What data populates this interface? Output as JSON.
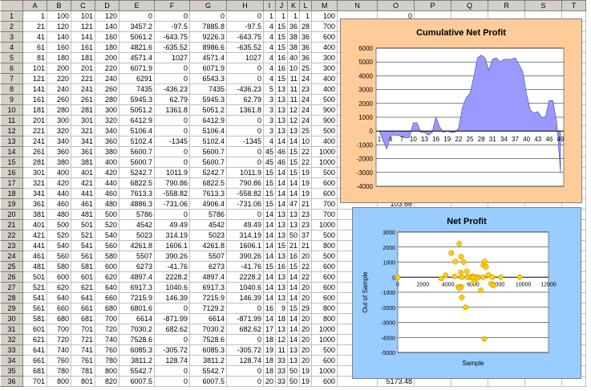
{
  "columns": [
    "A",
    "B",
    "C",
    "D",
    "E",
    "F",
    "G",
    "H",
    "I",
    "J",
    "K",
    "L",
    "M",
    "N",
    "O",
    "P",
    "Q",
    "R",
    "S",
    "T"
  ],
  "rows": [
    [
      "1",
      "100",
      "101",
      "120",
      "0",
      "0",
      "0",
      "0",
      "1",
      "1",
      "1",
      "1",
      "100"
    ],
    [
      "21",
      "120",
      "121",
      "140",
      "3457.2",
      "-97.5",
      "7885.8",
      "-97.5",
      "4",
      "15",
      "36",
      "28",
      "700"
    ],
    [
      "41",
      "140",
      "141",
      "160",
      "5061.2",
      "-643.75",
      "9226.3",
      "-643.75",
      "4",
      "15",
      "38",
      "36",
      "600"
    ],
    [
      "61",
      "160",
      "161",
      "180",
      "4821.6",
      "-635.52",
      "8986.6",
      "-635.52",
      "4",
      "15",
      "38",
      "36",
      "400"
    ],
    [
      "81",
      "180",
      "181",
      "200",
      "4571.4",
      "1027",
      "4571.4",
      "1027",
      "4",
      "16",
      "40",
      "36",
      "300"
    ],
    [
      "101",
      "200",
      "201",
      "220",
      "6071.9",
      "0",
      "6071.9",
      "0",
      "4",
      "16",
      "10",
      "25",
      "300"
    ],
    [
      "121",
      "220",
      "221",
      "240",
      "6291",
      "0",
      "6543.3",
      "0",
      "4",
      "15",
      "11",
      "24",
      "400"
    ],
    [
      "141",
      "240",
      "241",
      "260",
      "7435",
      "-436.23",
      "7435",
      "-436.23",
      "5",
      "13",
      "11",
      "23",
      "400"
    ],
    [
      "161",
      "260",
      "261",
      "280",
      "5945.3",
      "62.79",
      "5945.3",
      "62.79",
      "3",
      "13",
      "11",
      "24",
      "500"
    ],
    [
      "181",
      "280",
      "281",
      "300",
      "5051.2",
      "1361.8",
      "5051.2",
      "1361.8",
      "3",
      "13",
      "12",
      "24",
      "900"
    ],
    [
      "201",
      "300",
      "301",
      "320",
      "6412.9",
      "0",
      "6412.9",
      "0",
      "3",
      "13",
      "12",
      "24",
      "900"
    ],
    [
      "221",
      "320",
      "321",
      "340",
      "5106.4",
      "0",
      "5106.4",
      "0",
      "3",
      "13",
      "13",
      "25",
      "500"
    ],
    [
      "241",
      "340",
      "341",
      "360",
      "5102.4",
      "-1345",
      "5102.4",
      "-1345",
      "4",
      "14",
      "14",
      "10",
      "400"
    ],
    [
      "261",
      "360",
      "361",
      "380",
      "5600.7",
      "0",
      "5600.7",
      "0",
      "45",
      "46",
      "15",
      "22",
      "1000"
    ],
    [
      "281",
      "380",
      "381",
      "400",
      "5600.7",
      "0",
      "5600.7",
      "0",
      "45",
      "46",
      "15",
      "22",
      "1000"
    ],
    [
      "301",
      "400",
      "401",
      "420",
      "5242.7",
      "1011.9",
      "5242.7",
      "1011.9",
      "15",
      "14",
      "15",
      "19",
      "500"
    ],
    [
      "321",
      "420",
      "421",
      "440",
      "6822.5",
      "790.86",
      "6822.5",
      "790.86",
      "15",
      "14",
      "14",
      "19",
      "600"
    ],
    [
      "341",
      "440",
      "441",
      "460",
      "7613.3",
      "-558.82",
      "7613.3",
      "-558.82",
      "15",
      "14",
      "14",
      "19",
      "600"
    ],
    [
      "361",
      "460",
      "461",
      "480",
      "4886.3",
      "-731.06",
      "4906.4",
      "-731.06",
      "15",
      "14",
      "47",
      "21",
      "700"
    ],
    [
      "381",
      "480",
      "481",
      "500",
      "5786",
      "0",
      "5786",
      "0",
      "14",
      "13",
      "13",
      "23",
      "700"
    ],
    [
      "401",
      "500",
      "501",
      "520",
      "4542",
      "49.49",
      "4542",
      "49.49",
      "14",
      "13",
      "13",
      "23",
      "1000"
    ],
    [
      "421",
      "520",
      "521",
      "540",
      "5023",
      "314.19",
      "5023",
      "314.19",
      "14",
      "13",
      "50",
      "37",
      "500"
    ],
    [
      "441",
      "540",
      "541",
      "560",
      "4261.8",
      "1606.1",
      "4261.8",
      "1606.1",
      "14",
      "15",
      "21",
      "21",
      "800"
    ],
    [
      "461",
      "560",
      "561",
      "580",
      "5507",
      "390.26",
      "5507",
      "390.26",
      "14",
      "13",
      "16",
      "20",
      "500"
    ],
    [
      "481",
      "580",
      "581",
      "600",
      "6273",
      "-41.76",
      "6273",
      "-41.76",
      "15",
      "16",
      "15",
      "22",
      "600"
    ],
    [
      "501",
      "600",
      "601",
      "620",
      "4897.4",
      "2228.2",
      "4897.4",
      "2228.2",
      "14",
      "13",
      "14",
      "22",
      "600"
    ],
    [
      "521",
      "620",
      "621",
      "640",
      "6917.3",
      "1040.6",
      "6917.3",
      "1040.6",
      "14",
      "13",
      "14",
      "20",
      "600"
    ],
    [
      "541",
      "640",
      "641",
      "660",
      "7215.9",
      "146.39",
      "7215.9",
      "146.39",
      "14",
      "13",
      "14",
      "20",
      "600"
    ],
    [
      "561",
      "660",
      "661",
      "680",
      "6801.6",
      "0",
      "7129.2",
      "0",
      "16",
      "9",
      "15",
      "29",
      "800"
    ],
    [
      "581",
      "680",
      "681",
      "700",
      "6614",
      "-871.99",
      "6614",
      "-871.99",
      "14",
      "18",
      "14",
      "20",
      "800"
    ],
    [
      "601",
      "700",
      "701",
      "720",
      "7030.2",
      "682.62",
      "7030.2",
      "682.62",
      "17",
      "13",
      "14",
      "20",
      "1000"
    ],
    [
      "621",
      "720",
      "721",
      "740",
      "7528.6",
      "0",
      "7528.6",
      "0",
      "18",
      "12",
      "14",
      "20",
      "1000"
    ],
    [
      "641",
      "740",
      "741",
      "760",
      "6085.3",
      "-305.72",
      "6085.3",
      "-305.72",
      "19",
      "11",
      "13",
      "20",
      "500"
    ],
    [
      "661",
      "760",
      "761",
      "780",
      "3811.2",
      "128.74",
      "3811.2",
      "128.74",
      "18",
      "33",
      "13",
      "20",
      "600"
    ],
    [
      "681",
      "780",
      "781",
      "800",
      "5542.7",
      "0",
      "5542.7",
      "0",
      "18",
      "33",
      "50",
      "19",
      "1000"
    ],
    [
      "701",
      "800",
      "801",
      "820",
      "6007.5",
      "0",
      "6007.5",
      "0",
      "20",
      "33",
      "50",
      "19",
      "600"
    ]
  ],
  "extra_cells": {
    "o1": "0",
    "o19": "103.66",
    "o36": "5173.48"
  },
  "chart1": {
    "title": "Cumulative Net Profit",
    "type": "area",
    "color": "#9999ff",
    "y_ticks": [
      "6000",
      "5000",
      "4000",
      "3000",
      "2000",
      "1000",
      "0",
      "-1000",
      "-2000",
      "-3000",
      "-4000"
    ],
    "x_ticks": [
      "1",
      "4",
      "7",
      "10",
      "13",
      "16",
      "19",
      "22",
      "25",
      "28",
      "31",
      "34",
      "37",
      "40",
      "43",
      "46",
      "49"
    ],
    "values": [
      0,
      -700,
      -1300,
      -300,
      -300,
      -300,
      -400,
      -500,
      -450,
      600,
      600,
      -100,
      -100,
      -300,
      -100,
      1000,
      300,
      -100,
      0,
      -100,
      -100,
      200,
      1700,
      2400,
      2700,
      3900,
      5300,
      5500,
      5300,
      4400,
      5200,
      5300,
      5000,
      5200,
      5200,
      5200,
      5300,
      4800,
      4300,
      2700,
      1500,
      1300,
      1400,
      1000,
      1000,
      2200,
      2200,
      600,
      -3000
    ]
  },
  "chart2": {
    "title": "Net Profit",
    "type": "scatter",
    "color": "#ffcc00",
    "xlabel": "Sample",
    "ylabel": "Out of Sample",
    "x_ticks": [
      "0",
      "2000",
      "4000",
      "6000",
      "8000",
      "10000",
      "12000"
    ],
    "y_ticks": [
      "3000",
      "2000",
      "1000",
      "0",
      "-1000",
      "-2000",
      "-3000",
      "-4000",
      "-5000"
    ],
    "points": [
      [
        0,
        0
      ],
      [
        3457,
        -97
      ],
      [
        5061,
        -644
      ],
      [
        4822,
        -636
      ],
      [
        4571,
        1027
      ],
      [
        6072,
        0
      ],
      [
        6291,
        0
      ],
      [
        7435,
        -436
      ],
      [
        5945,
        63
      ],
      [
        5051,
        1362
      ],
      [
        6413,
        0
      ],
      [
        5106,
        0
      ],
      [
        5102,
        -1345
      ],
      [
        5601,
        0
      ],
      [
        5601,
        0
      ],
      [
        5243,
        1012
      ],
      [
        6822,
        791
      ],
      [
        7613,
        -559
      ],
      [
        4886,
        -731
      ],
      [
        5786,
        0
      ],
      [
        4542,
        49
      ],
      [
        5023,
        314
      ],
      [
        4262,
        1606
      ],
      [
        5507,
        390
      ],
      [
        6273,
        -42
      ],
      [
        4897,
        2228
      ],
      [
        6917,
        1041
      ],
      [
        7216,
        146
      ],
      [
        6802,
        0
      ],
      [
        6614,
        -872
      ],
      [
        7030,
        683
      ],
      [
        7529,
        0
      ],
      [
        6085,
        -306
      ],
      [
        3811,
        129
      ],
      [
        5543,
        0
      ],
      [
        6007,
        0
      ],
      [
        8200,
        0
      ],
      [
        9700,
        0
      ],
      [
        6900,
        -4100
      ],
      [
        5400,
        -2000
      ]
    ]
  }
}
